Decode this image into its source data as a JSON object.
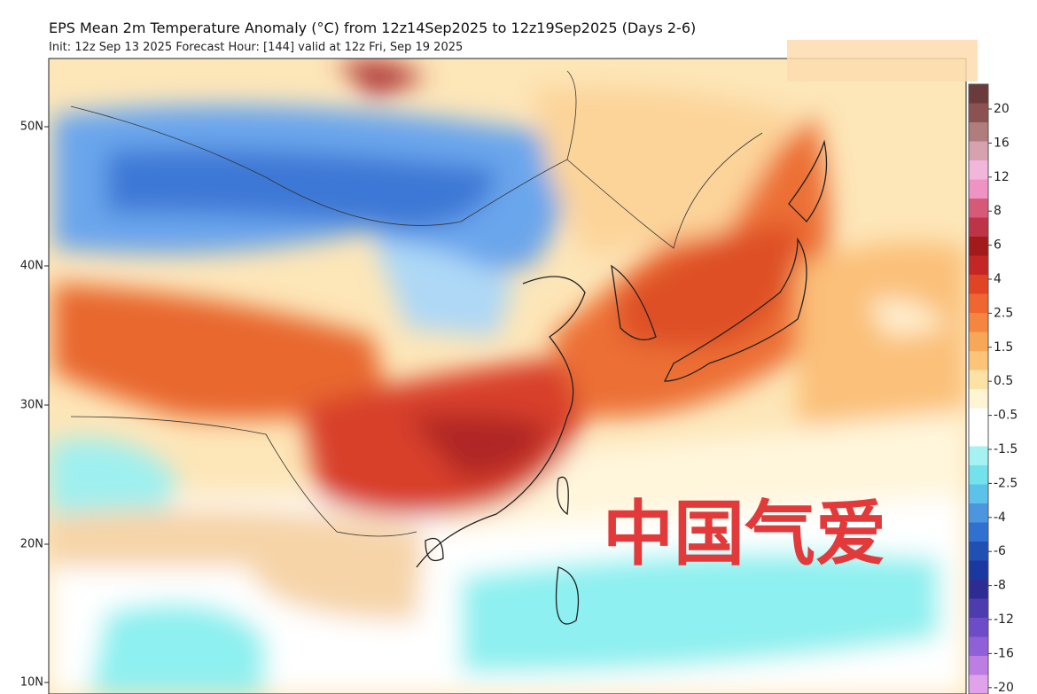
{
  "header": {
    "title": "EPS Mean 2m Temperature Anomaly (°C) from 12z14Sep2025 to 12z19Sep2025 (Days 2-6)",
    "subtitle": "Init: 12z Sep 13 2025   Forecast Hour: [144]   valid at 12z Fri, Sep 19 2025"
  },
  "map": {
    "lat_labels": [
      "50N",
      "40N",
      "30N",
      "20N",
      "10N"
    ],
    "watermark": "中国气爱"
  },
  "colorbar": {
    "labels": [
      20,
      16,
      12,
      8,
      6,
      4,
      2.5,
      1.5,
      0.5,
      -0.5,
      -1.5,
      -2.5,
      -4,
      -6,
      -8,
      -12,
      -16,
      -20
    ],
    "colors": [
      "#6b3a3a",
      "#8c5252",
      "#b07c7c",
      "#d6a2b0",
      "#f2b6dc",
      "#ef92c4",
      "#d65a78",
      "#bc3446",
      "#a21a1a",
      "#c42626",
      "#e04424",
      "#ef6630",
      "#f48642",
      "#f8a658",
      "#fbc478",
      "#fde2a6",
      "#fff4d4",
      "#ffffff",
      "#ffffff",
      "#a6f2f2",
      "#74e2ea",
      "#5cc2ea",
      "#4c96e0",
      "#3070d0",
      "#2050b2",
      "#1a38a0",
      "#2c2c92",
      "#4c3cb0",
      "#6c4cc8",
      "#9060d8",
      "#bc7ee2",
      "#e0a2ea"
    ]
  }
}
